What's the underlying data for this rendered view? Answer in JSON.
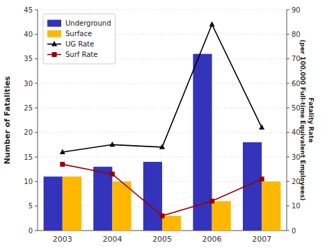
{
  "chart_data": {
    "type": "bar",
    "ylabel": "Number of Fatalities",
    "y2label": "Fatality Rate\n(per 100,000 Full-time Equivalent Employees)",
    "categories": [
      "2003",
      "2004",
      "2005",
      "2006",
      "2007"
    ],
    "series": [
      {
        "name": "Underground",
        "type": "bar",
        "color": "#3333BB",
        "values": [
          11,
          13,
          14,
          36,
          18
        ]
      },
      {
        "name": "Surface",
        "type": "bar",
        "color": "#FFB800",
        "values": [
          11,
          10,
          3,
          6,
          10
        ]
      },
      {
        "name": "UG Rate",
        "type": "line",
        "axis": "y2",
        "color": "#000000",
        "marker": "triangle",
        "values": [
          32,
          35,
          34,
          84,
          42
        ]
      },
      {
        "name": "Surf Rate",
        "type": "line",
        "axis": "y2",
        "color": "#990000",
        "marker": "square",
        "values": [
          27,
          23,
          6,
          12,
          21
        ]
      }
    ],
    "ylim": [
      0,
      45
    ],
    "yticks": [
      0,
      5,
      10,
      15,
      20,
      25,
      30,
      35,
      40,
      45
    ],
    "y2lim": [
      0,
      90
    ],
    "y2ticks": [
      0,
      10,
      20,
      30,
      40,
      50,
      60,
      70,
      80,
      90
    ],
    "grid": true,
    "legend": "upper left"
  }
}
